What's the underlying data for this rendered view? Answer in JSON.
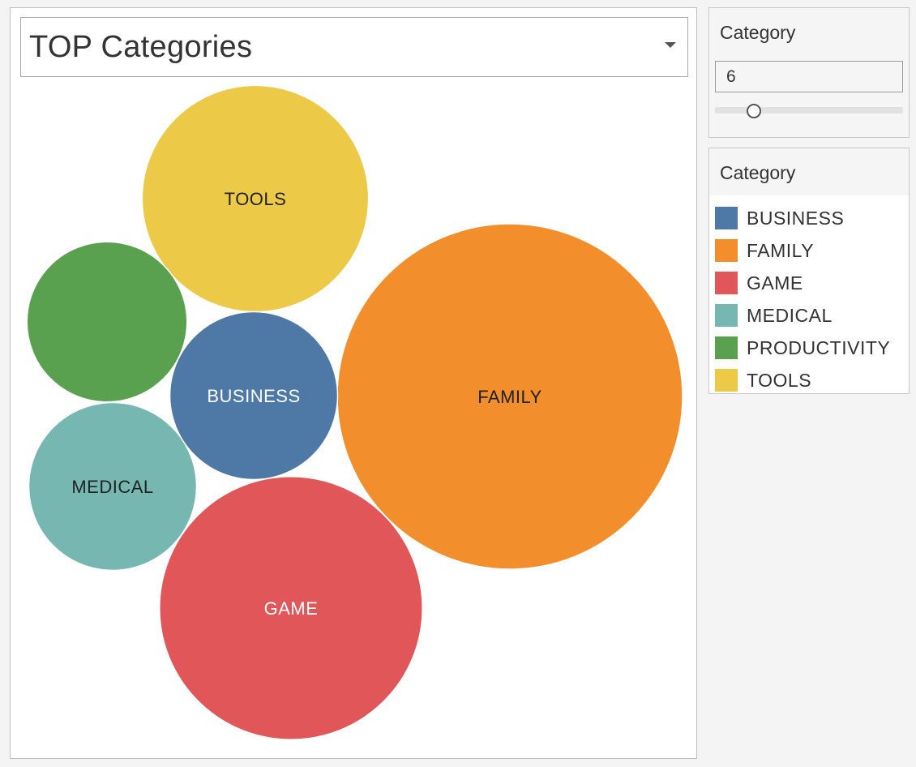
{
  "title": "TOP Categories",
  "filter": {
    "title": "Category",
    "value": "6",
    "slider_fraction": 0.18
  },
  "legend": {
    "title": "Category",
    "items": [
      {
        "label": "BUSINESS",
        "color": "#4e79a7"
      },
      {
        "label": "FAMILY",
        "color": "#f28e2b"
      },
      {
        "label": "GAME",
        "color": "#e15759"
      },
      {
        "label": "MEDICAL",
        "color": "#76b7b2"
      },
      {
        "label": "PRODUCTIVITY",
        "color": "#59a14f"
      },
      {
        "label": "TOOLS",
        "color": "#edc948"
      }
    ]
  },
  "chart_data": {
    "type": "bubble",
    "title": "TOP Categories",
    "series": [
      {
        "name": "FAMILY",
        "label": "FAMILY",
        "relative_size": 1.0,
        "color": "#f28e2b",
        "label_color": "#222222"
      },
      {
        "name": "GAME",
        "label": "GAME",
        "relative_size": 0.58,
        "color": "#e15759",
        "label_color": "#ffffff"
      },
      {
        "name": "TOOLS",
        "label": "TOOLS",
        "relative_size": 0.43,
        "color": "#edc948",
        "label_color": "#222222"
      },
      {
        "name": "MEDICAL",
        "label": "MEDICAL",
        "relative_size": 0.236,
        "color": "#76b7b2",
        "label_color": "#222222"
      },
      {
        "name": "BUSINESS",
        "label": "BUSINESS",
        "relative_size": 0.236,
        "color": "#4e79a7",
        "label_color": "#ffffff"
      },
      {
        "name": "PRODUCTIVITY",
        "label": "",
        "relative_size": 0.215,
        "color": "#59a14f",
        "label_color": "#222222"
      }
    ]
  }
}
